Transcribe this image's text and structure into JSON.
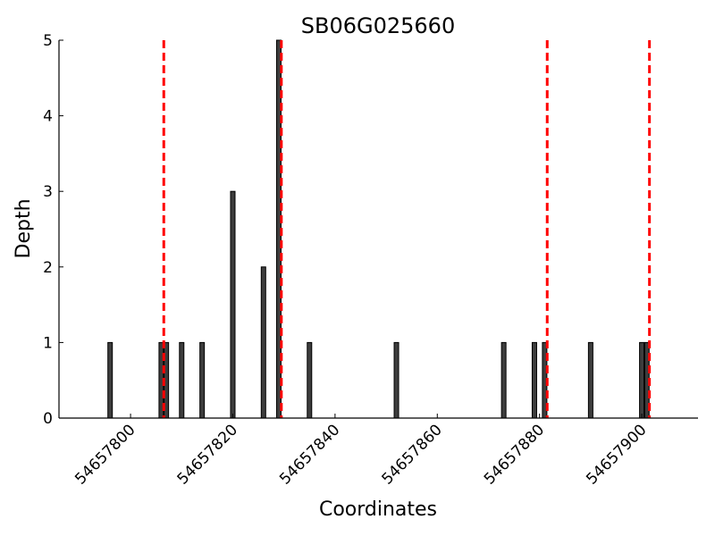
{
  "chart_data": {
    "type": "bar",
    "title": "SB06G025660",
    "xlabel": "Coordinates",
    "ylabel": "Depth",
    "xlim": [
      54657786,
      54657911
    ],
    "ylim": [
      0,
      5
    ],
    "xticks": [
      54657800,
      54657820,
      54657840,
      54657860,
      54657880,
      54657900
    ],
    "yticks": [
      0,
      1,
      2,
      3,
      4,
      5
    ],
    "grid": false,
    "bar_color": "#3d3d3d",
    "reference_line_color": "#ff0000",
    "bars": [
      {
        "x": 54657796,
        "depth": 1
      },
      {
        "x": 54657806,
        "depth": 1
      },
      {
        "x": 54657807,
        "depth": 1
      },
      {
        "x": 54657810,
        "depth": 1
      },
      {
        "x": 54657814,
        "depth": 1
      },
      {
        "x": 54657820,
        "depth": 3
      },
      {
        "x": 54657826,
        "depth": 2
      },
      {
        "x": 54657829,
        "depth": 5
      },
      {
        "x": 54657835,
        "depth": 1
      },
      {
        "x": 54657852,
        "depth": 1
      },
      {
        "x": 54657873,
        "depth": 1
      },
      {
        "x": 54657879,
        "depth": 1
      },
      {
        "x": 54657881,
        "depth": 1
      },
      {
        "x": 54657890,
        "depth": 1
      },
      {
        "x": 54657900,
        "depth": 1
      },
      {
        "x": 54657901,
        "depth": 1
      }
    ],
    "reference_lines": [
      54657806.5,
      54657829.5,
      54657881.5,
      54657901.5
    ]
  }
}
